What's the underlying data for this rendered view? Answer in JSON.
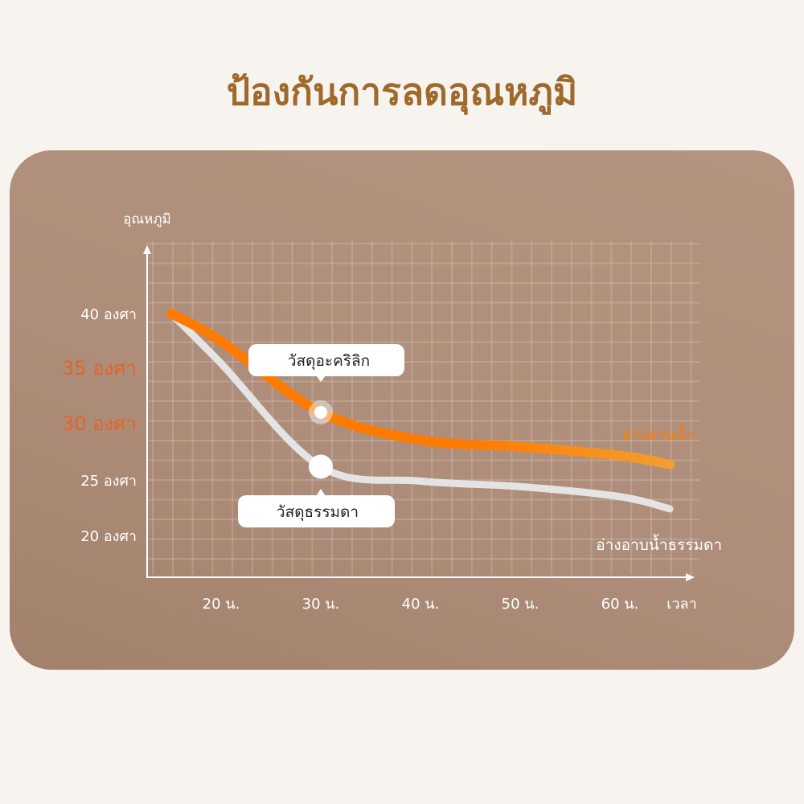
{
  "title": "ป้องกันการลดอุณหภูมิ",
  "chart_data": {
    "type": "line",
    "ylabel": "อุณหภูมิ",
    "xlabel": "เวลา",
    "x_ticks": [
      {
        "value": 20,
        "label": "20 น."
      },
      {
        "value": 30,
        "label": "30 น."
      },
      {
        "value": 40,
        "label": "40 น."
      },
      {
        "value": 50,
        "label": "50 น."
      },
      {
        "value": 60,
        "label": "60 น."
      }
    ],
    "y_ticks": [
      {
        "value": 40,
        "label": "40 องศา",
        "color": "#ffffff"
      },
      {
        "value": 35,
        "label": "35 องศา",
        "color": "#e2642a"
      },
      {
        "value": 30,
        "label": "30 องศา",
        "color": "#e2642a"
      },
      {
        "value": 25,
        "label": "25 องศา",
        "color": "#ffffff"
      },
      {
        "value": 20,
        "label": "20 องศา",
        "color": "#ffffff"
      }
    ],
    "grid": true,
    "series": [
      {
        "name": "อ่างอาบน้ำ",
        "color": "#ff7a00",
        "x": [
          15,
          20,
          30,
          40,
          50,
          60,
          65
        ],
        "y": [
          40,
          37.5,
          31.1,
          28.6,
          28.0,
          27.2,
          26.4
        ],
        "callout": {
          "x": 30,
          "y": 31.1,
          "text": "วัสดุอะคริลิก"
        }
      },
      {
        "name": "อ่างอาบน้ำธรรมดา",
        "color": "#e4e4e4",
        "x": [
          15,
          20,
          30,
          40,
          50,
          60,
          65
        ],
        "y": [
          40,
          35.5,
          26.2,
          24.9,
          24.4,
          23.5,
          22.4
        ],
        "callout": {
          "x": 30,
          "y": 26.2,
          "text": "วัสดุธรรมดา"
        }
      }
    ]
  }
}
